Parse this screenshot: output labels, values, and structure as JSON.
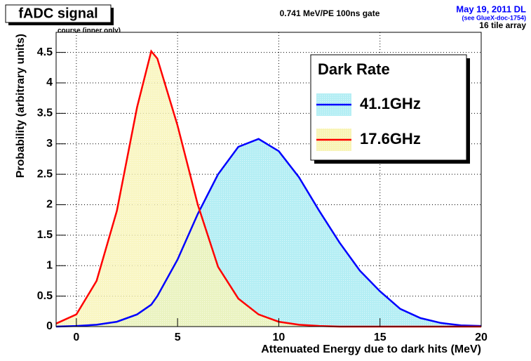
{
  "chart_data": {
    "type": "line",
    "title": "fADC signal",
    "annotations": [
      "0.741 MeV/PE  100ns gate",
      "May 19, 2011 DL",
      "(see GlueX-doc-1754)",
      "16 tile array",
      "course (inner only)"
    ],
    "x_label": "Attenuated Energy due to dark hits (MeV)",
    "y_label": "Probability (arbitrary units)",
    "legend_title": "Dark Rate",
    "x": [
      -1,
      0,
      1,
      2,
      3,
      3.7,
      4,
      5,
      6,
      7,
      8,
      9,
      10,
      11,
      12,
      13,
      14,
      15,
      16,
      17,
      18,
      19,
      20
    ],
    "series": [
      {
        "name": "41.1GHz",
        "color": "#0000ff",
        "fill": "#b4eef4",
        "values": [
          0,
          0.01,
          0.03,
          0.08,
          0.2,
          0.36,
          0.5,
          1.1,
          1.85,
          2.5,
          2.95,
          3.08,
          2.88,
          2.45,
          1.9,
          1.38,
          0.92,
          0.58,
          0.29,
          0.14,
          0.06,
          0.02,
          0.01
        ]
      },
      {
        "name": "17.6GHz",
        "color": "#ff0000",
        "fill": "#f8f4b4",
        "values": [
          0.05,
          0.2,
          0.75,
          1.9,
          3.6,
          4.52,
          4.4,
          3.3,
          2.0,
          0.98,
          0.46,
          0.2,
          0.08,
          0.03,
          0.01,
          0,
          0,
          0,
          0,
          0,
          0,
          0,
          0
        ]
      }
    ],
    "xlim": [
      -1,
      20
    ],
    "ylim": [
      0,
      4.83
    ],
    "xticks": [
      0,
      5,
      10,
      15,
      20
    ],
    "yticks": [
      0,
      0.5,
      1,
      1.5,
      2,
      2.5,
      3,
      3.5,
      4,
      4.5
    ],
    "grid": true,
    "legend": "upper right"
  }
}
